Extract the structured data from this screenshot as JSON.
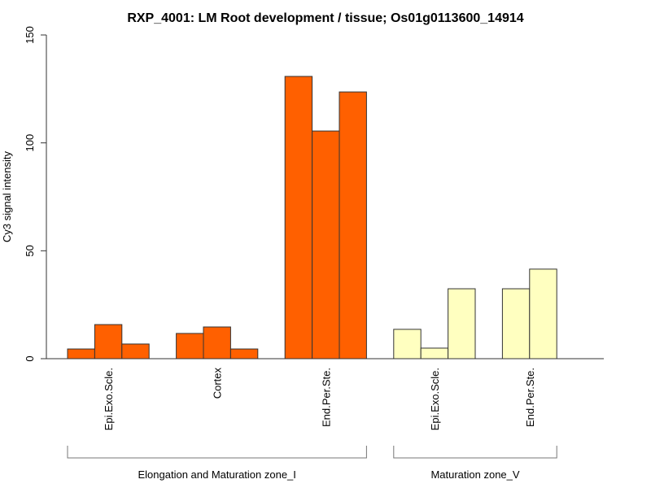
{
  "chart_data": {
    "type": "bar",
    "title": "RXP_4001: LM Root development / tissue; Os01g0113600_14914",
    "xlabel": "",
    "ylabel": "Cy3 signal intensity",
    "ylim": [
      0,
      150
    ],
    "yticks": [
      0,
      50,
      100,
      150
    ],
    "grid": false,
    "legend": "none",
    "groups": [
      {
        "name": "Elongation and Maturation zone_I",
        "color": "#ff6000",
        "categories": [
          {
            "label": "Epi.Exo.Scle.",
            "values": [
              4.5,
              15.8,
              6.8
            ]
          },
          {
            "label": "Cortex",
            "values": [
              11.7,
              14.7,
              4.5
            ]
          },
          {
            "label": "End.Per.Ste.",
            "values": [
              130.8,
              105.5,
              123.6
            ]
          }
        ]
      },
      {
        "name": "Maturation zone_V",
        "color": "#ffffc0",
        "categories": [
          {
            "label": "Epi.Exo.Scle.",
            "values": [
              13.6,
              4.9,
              32.4
            ]
          },
          {
            "label": "End.Per.Ste.",
            "values": [
              32.4,
              41.5
            ]
          }
        ]
      }
    ]
  }
}
